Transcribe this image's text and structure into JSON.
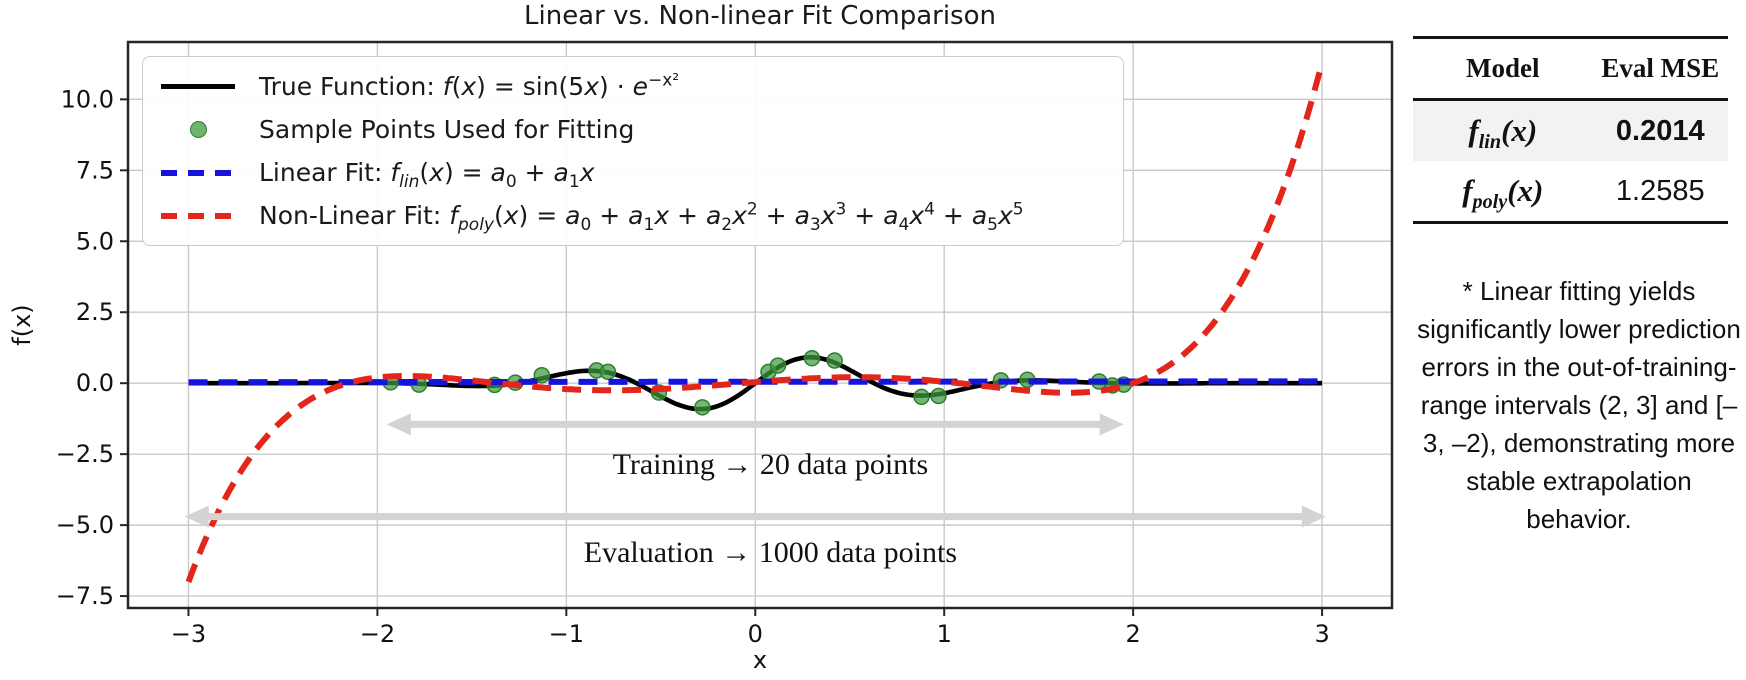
{
  "chart_data": {
    "type": "line",
    "title": "Linear vs. Non-linear Fit Comparison",
    "xlabel": "x",
    "ylabel": "f(x)",
    "xlim": [
      -3.32,
      3.37
    ],
    "ylim": [
      -7.92,
      12.02
    ],
    "grid": true,
    "legend_position": "upper left",
    "xticks": {
      "values": [
        -3,
        -2,
        -1,
        0,
        1,
        2,
        3
      ],
      "labels": [
        "−3",
        "−2",
        "−1",
        "0",
        "1",
        "2",
        "3"
      ]
    },
    "yticks": {
      "values": [
        10.0,
        7.5,
        5.0,
        2.5,
        0.0,
        -2.5,
        -5.0,
        -7.5
      ],
      "labels": [
        "10.0",
        "7.5",
        "5.0",
        "2.5",
        "0.0",
        "−2.5",
        "−5.0",
        "−7.5"
      ]
    },
    "series": [
      {
        "name": "true-function",
        "label_tokens": [
          {
            "t": "txt",
            "v": "True Function: "
          },
          {
            "t": "i",
            "v": "f"
          },
          {
            "t": "txt",
            "v": "("
          },
          {
            "t": "i",
            "v": "x"
          },
          {
            "t": "txt",
            "v": ") = sin(5"
          },
          {
            "t": "i",
            "v": "x"
          },
          {
            "t": "txt",
            "v": ") · "
          },
          {
            "t": "i",
            "v": "e"
          },
          {
            "t": "sup",
            "v": "−x²"
          }
        ],
        "kind": "curve",
        "formula": "sin(5x)*exp(-x^2)",
        "formula_id": "sin5x_gauss",
        "color": "#000000",
        "style": "solid",
        "width": 4.6,
        "x_range": [
          -3,
          3
        ]
      },
      {
        "name": "sample-points",
        "label_tokens": [
          {
            "t": "txt",
            "v": "Sample Points Used for Fitting"
          }
        ],
        "kind": "scatter",
        "color": "#3e9a3e",
        "edge_color": "#2e7d2e",
        "opacity": 0.72,
        "radius": 7.5,
        "points": [
          [
            -1.93,
            0.03
          ],
          [
            -1.78,
            -0.05
          ],
          [
            -1.38,
            -0.06
          ],
          [
            -1.27,
            0.02
          ],
          [
            -1.13,
            0.28
          ],
          [
            -0.84,
            0.45
          ],
          [
            -0.78,
            0.4
          ],
          [
            -0.51,
            -0.33
          ],
          [
            -0.28,
            -0.85
          ],
          [
            0.07,
            0.4
          ],
          [
            0.12,
            0.62
          ],
          [
            0.3,
            0.88
          ],
          [
            0.42,
            0.8
          ],
          [
            0.88,
            -0.48
          ],
          [
            0.97,
            -0.45
          ],
          [
            1.3,
            0.1
          ],
          [
            1.44,
            0.12
          ],
          [
            1.82,
            0.06
          ],
          [
            1.89,
            -0.08
          ],
          [
            1.95,
            -0.05
          ]
        ]
      },
      {
        "name": "linear-fit",
        "label_tokens": [
          {
            "t": "txt",
            "v": "Linear Fit: "
          },
          {
            "t": "i",
            "v": "f"
          },
          {
            "t": "subi",
            "v": "lin"
          },
          {
            "t": "txt",
            "v": "("
          },
          {
            "t": "i",
            "v": "x"
          },
          {
            "t": "txt",
            "v": ") = "
          },
          {
            "t": "i",
            "v": "a"
          },
          {
            "t": "sub",
            "v": "0"
          },
          {
            "t": "txt",
            "v": " + "
          },
          {
            "t": "i",
            "v": "a"
          },
          {
            "t": "sub",
            "v": "1"
          },
          {
            "t": "i",
            "v": "x"
          }
        ],
        "kind": "curve",
        "formula": "a0 + a1*x",
        "coeffs": [
          0.05,
          0.005
        ],
        "color": "#1414dc",
        "style": "dashed",
        "width": 6,
        "x_range": [
          -3,
          3
        ]
      },
      {
        "name": "poly-fit",
        "label_tokens": [
          {
            "t": "txt",
            "v": "Non-Linear Fit: "
          },
          {
            "t": "i",
            "v": "f"
          },
          {
            "t": "subi",
            "v": "poly"
          },
          {
            "t": "txt",
            "v": "("
          },
          {
            "t": "i",
            "v": "x"
          },
          {
            "t": "txt",
            "v": ") = "
          },
          {
            "t": "i",
            "v": "a"
          },
          {
            "t": "sub",
            "v": "0"
          },
          {
            "t": "txt",
            "v": " + "
          },
          {
            "t": "i",
            "v": "a"
          },
          {
            "t": "sub",
            "v": "1"
          },
          {
            "t": "i",
            "v": "x"
          },
          {
            "t": "txt",
            "v": " + "
          },
          {
            "t": "i",
            "v": "a"
          },
          {
            "t": "sub",
            "v": "2"
          },
          {
            "t": "i",
            "v": "x"
          },
          {
            "t": "sup",
            "v": "2"
          },
          {
            "t": "txt",
            "v": " + "
          },
          {
            "t": "i",
            "v": "a"
          },
          {
            "t": "sub",
            "v": "3"
          },
          {
            "t": "i",
            "v": "x"
          },
          {
            "t": "sup",
            "v": "3"
          },
          {
            "t": "txt",
            "v": " + "
          },
          {
            "t": "i",
            "v": "a"
          },
          {
            "t": "sub",
            "v": "4"
          },
          {
            "t": "i",
            "v": "x"
          },
          {
            "t": "sup",
            "v": "4"
          },
          {
            "t": "txt",
            "v": " + "
          },
          {
            "t": "i",
            "v": "a"
          },
          {
            "t": "sub",
            "v": "5"
          },
          {
            "t": "i",
            "v": "x"
          },
          {
            "t": "sup",
            "v": "5"
          }
        ],
        "kind": "curve",
        "formula": "quintic polynomial fit",
        "coeffs": [
          0.04,
          0.53,
          -0.1606,
          -0.485,
          0.0439,
          0.085
        ],
        "color": "#e3261c",
        "style": "dashed",
        "width": 6,
        "x_range": [
          -3,
          3
        ]
      }
    ],
    "annotations": [
      {
        "name": "training-range",
        "text": "Training → 20 data points",
        "text_x": 0.08,
        "text_y": -2.85,
        "arrow": {
          "x1": -1.95,
          "x2": 1.95,
          "y": -1.45,
          "color": "#d3d3d3"
        }
      },
      {
        "name": "evaluation-range",
        "text": "Evaluation → 1000 data points",
        "text_x": 0.08,
        "text_y": -5.95,
        "arrow": {
          "x1": -3.02,
          "x2": 3.02,
          "y": -4.7,
          "color": "#d3d3d3"
        }
      }
    ]
  },
  "side_panel": {
    "table": {
      "header_model": "Model",
      "header_mse": "Eval MSE",
      "rows": [
        {
          "model_tokens": [
            {
              "t": "txt",
              "v": "f"
            },
            {
              "t": "subr",
              "v": "lin"
            },
            {
              "t": "txt",
              "v": "(x)"
            }
          ],
          "value": "0.2014",
          "value_bold": true,
          "shaded": true
        },
        {
          "model_tokens": [
            {
              "t": "txt",
              "v": "f"
            },
            {
              "t": "subr",
              "v": "poly"
            },
            {
              "t": "txt",
              "v": "(x)"
            }
          ],
          "value": "1.2585",
          "value_bold": false,
          "shaded": false
        }
      ]
    },
    "footnote": "* Linear fitting yields significantly lower prediction errors in the out-of-training-range intervals (2, 3] and [–3, –2), demonstrating more stable extrapolation behavior."
  },
  "colors": {
    "true_function": "#000000",
    "linear_fit": "#1414dc",
    "poly_fit": "#e3261c",
    "sample_points": "#3e9a3e",
    "grid": "#c9c9c9",
    "spine": "#262626",
    "range_arrow": "#d3d3d3",
    "table_shade": "#f2f2f2"
  }
}
